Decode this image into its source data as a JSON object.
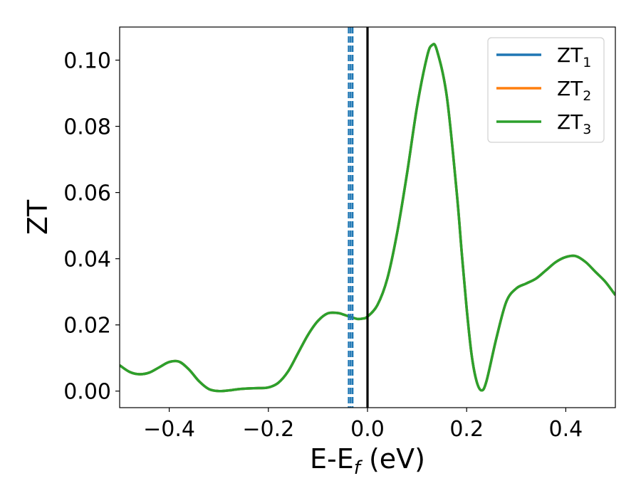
{
  "chart_data": {
    "type": "line",
    "xlabel": "E-E",
    "xlabel_sub": "f",
    "xlabel_unit": " (eV)",
    "ylabel": "ZT",
    "xlim": [
      -0.5,
      0.5
    ],
    "ylim": [
      -0.005,
      0.11
    ],
    "grid": false,
    "legend_position": "top-right",
    "x_ticks": [
      -0.4,
      -0.2,
      0.0,
      0.2,
      0.4
    ],
    "x_tick_labels": [
      "−0.4",
      "−0.2",
      "0.0",
      "0.2",
      "0.4"
    ],
    "y_ticks": [
      0.0,
      0.02,
      0.04,
      0.06,
      0.08,
      0.1
    ],
    "y_tick_labels": [
      "0.00",
      "0.02",
      "0.04",
      "0.06",
      "0.08",
      "0.10"
    ],
    "x": [
      -0.5,
      -0.48,
      -0.46,
      -0.44,
      -0.42,
      -0.4,
      -0.38,
      -0.36,
      -0.34,
      -0.32,
      -0.3,
      -0.28,
      -0.26,
      -0.24,
      -0.22,
      -0.2,
      -0.18,
      -0.16,
      -0.14,
      -0.12,
      -0.1,
      -0.08,
      -0.06,
      -0.05,
      -0.04,
      -0.03,
      -0.02,
      -0.01,
      0.0,
      0.02,
      0.04,
      0.06,
      0.08,
      0.1,
      0.12,
      0.13,
      0.14,
      0.16,
      0.18,
      0.19,
      0.2,
      0.21,
      0.22,
      0.23,
      0.24,
      0.26,
      0.28,
      0.3,
      0.32,
      0.34,
      0.36,
      0.38,
      0.4,
      0.42,
      0.44,
      0.46,
      0.48,
      0.5
    ],
    "series": [
      {
        "name": "ZT",
        "sub": "1",
        "color": "#1f77b4",
        "values": [
          0.0078,
          0.0058,
          0.0051,
          0.0056,
          0.0072,
          0.0088,
          0.0089,
          0.0065,
          0.003,
          0.0006,
          0.0,
          0.0002,
          0.0006,
          0.0008,
          0.0009,
          0.0011,
          0.0025,
          0.006,
          0.0115,
          0.017,
          0.0212,
          0.0235,
          0.0236,
          0.0232,
          0.0227,
          0.0222,
          0.0218,
          0.0219,
          0.0225,
          0.026,
          0.034,
          0.048,
          0.066,
          0.086,
          0.101,
          0.1045,
          0.103,
          0.089,
          0.06,
          0.042,
          0.025,
          0.011,
          0.003,
          0.0002,
          0.003,
          0.016,
          0.027,
          0.031,
          0.0325,
          0.034,
          0.0365,
          0.039,
          0.0405,
          0.0408,
          0.039,
          0.036,
          0.033,
          0.029
        ]
      },
      {
        "name": "ZT",
        "sub": "2",
        "color": "#ff7f0e",
        "values": [
          0.0078,
          0.0058,
          0.0051,
          0.0056,
          0.0072,
          0.0088,
          0.0089,
          0.0065,
          0.003,
          0.0006,
          0.0,
          0.0002,
          0.0006,
          0.0008,
          0.0009,
          0.0011,
          0.0025,
          0.006,
          0.0115,
          0.017,
          0.0212,
          0.0235,
          0.0236,
          0.0232,
          0.0227,
          0.0222,
          0.0218,
          0.0219,
          0.0225,
          0.026,
          0.034,
          0.048,
          0.066,
          0.086,
          0.101,
          0.1045,
          0.103,
          0.089,
          0.06,
          0.042,
          0.025,
          0.011,
          0.003,
          0.0002,
          0.003,
          0.016,
          0.027,
          0.031,
          0.0325,
          0.034,
          0.0365,
          0.039,
          0.0405,
          0.0408,
          0.039,
          0.036,
          0.033,
          0.029
        ]
      },
      {
        "name": "ZT",
        "sub": "3",
        "color": "#2ca02c",
        "values": [
          0.0078,
          0.0058,
          0.0051,
          0.0056,
          0.0072,
          0.0088,
          0.0089,
          0.0065,
          0.003,
          0.0006,
          0.0,
          0.0002,
          0.0006,
          0.0008,
          0.0009,
          0.0011,
          0.0025,
          0.006,
          0.0115,
          0.017,
          0.0212,
          0.0235,
          0.0236,
          0.0232,
          0.0227,
          0.0222,
          0.0218,
          0.0219,
          0.0225,
          0.026,
          0.034,
          0.048,
          0.066,
          0.086,
          0.101,
          0.1045,
          0.103,
          0.089,
          0.06,
          0.042,
          0.025,
          0.011,
          0.003,
          0.0002,
          0.003,
          0.016,
          0.027,
          0.031,
          0.0325,
          0.034,
          0.0365,
          0.039,
          0.0405,
          0.0408,
          0.039,
          0.036,
          0.033,
          0.029
        ]
      }
    ],
    "vlines": [
      {
        "x": -0.038,
        "color": "#1f77b4",
        "style": "dashed"
      },
      {
        "x": -0.034,
        "color": "#1f77b4",
        "style": "dashed"
      },
      {
        "x": -0.03,
        "color": "#1f77b4",
        "style": "dashed"
      },
      {
        "x": 0.0,
        "color": "#000000",
        "style": "solid"
      }
    ]
  }
}
